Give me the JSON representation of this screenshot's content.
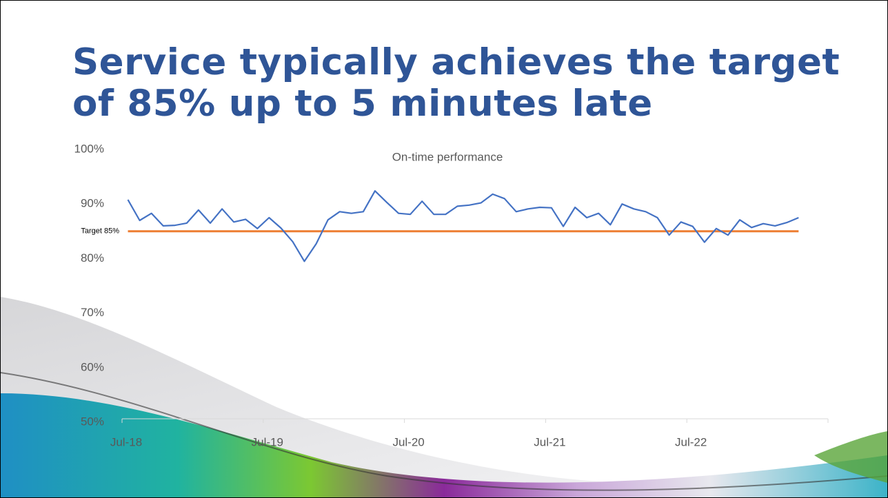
{
  "slide_title": "Service typically achieves the target of 85% up to 5 minutes late",
  "chart_data": {
    "type": "line",
    "title": "On-time performance",
    "categories": [
      "Jul-18",
      null,
      null,
      null,
      null,
      null,
      null,
      null,
      null,
      null,
      null,
      null,
      "Jul-19",
      null,
      null,
      null,
      null,
      null,
      null,
      null,
      null,
      null,
      null,
      null,
      "Jul-20",
      null,
      null,
      null,
      null,
      null,
      null,
      null,
      null,
      null,
      null,
      null,
      "Jul-21",
      null,
      null,
      null,
      null,
      null,
      null,
      null,
      null,
      null,
      null,
      null,
      "Jul-22",
      null,
      null,
      null,
      null,
      null,
      null,
      null,
      null,
      null,
      null,
      null
    ],
    "values": [
      90.8,
      87.0,
      88.3,
      86.0,
      86.1,
      86.5,
      88.9,
      86.5,
      89.1,
      86.7,
      87.2,
      85.5,
      87.5,
      85.6,
      83.1,
      79.5,
      82.7,
      87.1,
      88.6,
      88.3,
      88.6,
      92.4,
      90.3,
      88.3,
      88.1,
      90.5,
      88.1,
      88.1,
      89.6,
      89.8,
      90.2,
      91.8,
      91.0,
      88.6,
      89.1,
      89.4,
      89.3,
      85.9,
      89.4,
      87.5,
      88.3,
      86.2,
      90.0,
      89.1,
      88.6,
      87.5,
      84.3,
      86.7,
      85.9,
      83.0,
      85.5,
      84.3,
      87.1,
      85.7,
      86.4,
      86.0,
      86.6,
      87.5,
      null,
      null
    ],
    "color": "#4472c4",
    "target": {
      "value": 85,
      "label": "Target 85%",
      "color": "#ed7d31"
    },
    "ylim": [
      50,
      100
    ],
    "yticks": [
      {
        "value": 50,
        "label": "50%"
      },
      {
        "value": 60,
        "label": "60%"
      },
      {
        "value": 70,
        "label": "70%"
      },
      {
        "value": 80,
        "label": "80%"
      },
      {
        "value": 90,
        "label": "90%"
      },
      {
        "value": 100,
        "label": "100%"
      }
    ],
    "grid": false
  }
}
